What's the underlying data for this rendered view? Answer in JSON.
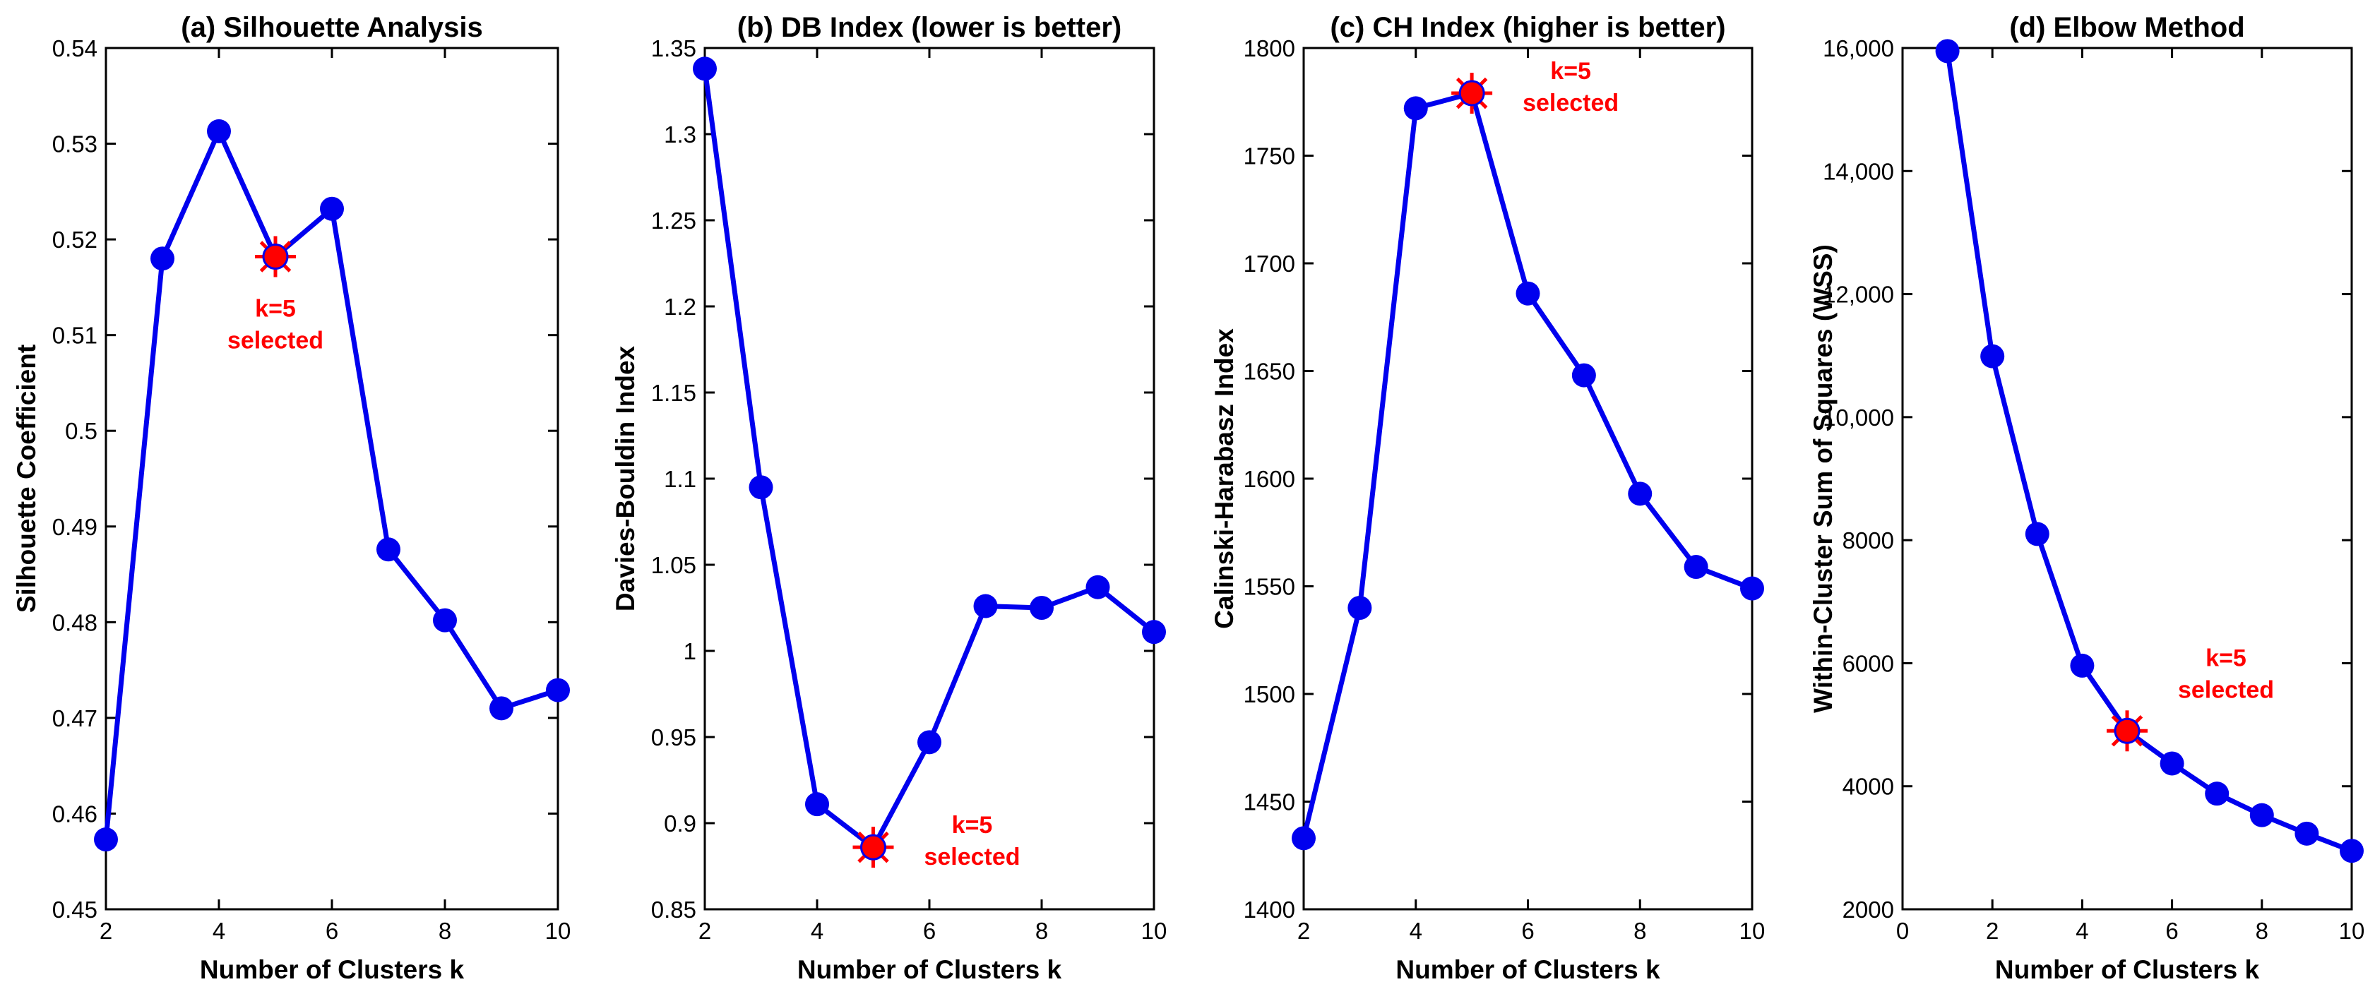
{
  "colors": {
    "series": "#0000ee",
    "highlight": "#ff0000",
    "axis": "#000000"
  },
  "chart_data": [
    {
      "type": "line",
      "title": "(a) Silhouette Analysis",
      "xlabel": "Number of Clusters k",
      "ylabel": "Silhouette Coefficient",
      "x": [
        2,
        3,
        4,
        5,
        6,
        7,
        8,
        9,
        10
      ],
      "values": [
        0.4573,
        0.518,
        0.5313,
        0.5182,
        0.5232,
        0.4876,
        0.4802,
        0.471,
        0.4729
      ],
      "xlim": [
        2,
        10
      ],
      "ylim": [
        0.45,
        0.54
      ],
      "xticks": [
        2,
        4,
        6,
        8,
        10
      ],
      "xtick_labels": [
        "2",
        "4",
        "6",
        "8",
        "10"
      ],
      "yticks": [
        0.45,
        0.46,
        0.47,
        0.48,
        0.49,
        0.5,
        0.51,
        0.52,
        0.53,
        0.54
      ],
      "ytick_labels": [
        "0.45",
        "0.46",
        "0.47",
        "0.48",
        "0.49",
        "0.5",
        "0.51",
        "0.52",
        "0.53",
        "0.54"
      ],
      "highlight": {
        "x": 5,
        "y": 0.5182,
        "label_line1": "k=5",
        "label_line2": "selected",
        "label_placement": "below"
      }
    },
    {
      "type": "line",
      "title": "(b) DB Index (lower is better)",
      "xlabel": "Number of Clusters k",
      "ylabel": "Davies-Bouldin Index",
      "x": [
        2,
        3,
        4,
        5,
        6,
        7,
        8,
        9,
        10
      ],
      "values": [
        1.338,
        1.095,
        0.911,
        0.886,
        0.947,
        1.026,
        1.025,
        1.037,
        1.011
      ],
      "xlim": [
        2,
        10
      ],
      "ylim": [
        0.85,
        1.35
      ],
      "xticks": [
        2,
        4,
        6,
        8,
        10
      ],
      "xtick_labels": [
        "2",
        "4",
        "6",
        "8",
        "10"
      ],
      "yticks": [
        0.85,
        0.9,
        0.95,
        1,
        1.05,
        1.1,
        1.15,
        1.2,
        1.25,
        1.3,
        1.35
      ],
      "ytick_labels": [
        "0.85",
        "0.9",
        "0.95",
        "1",
        "1.05",
        "1.1",
        "1.15",
        "1.2",
        "1.25",
        "1.3",
        "1.35"
      ],
      "highlight": {
        "x": 5,
        "y": 0.886,
        "label_line1": "k=5",
        "label_line2": "selected",
        "label_placement": "right"
      }
    },
    {
      "type": "line",
      "title": "(c) CH Index (higher is better)",
      "xlabel": "Number of Clusters k",
      "ylabel": "Calinski-Harabasz Index",
      "x": [
        2,
        3,
        4,
        5,
        6,
        7,
        8,
        9,
        10
      ],
      "values": [
        1433,
        1540,
        1772,
        1779,
        1686,
        1648,
        1593,
        1559,
        1549
      ],
      "xlim": [
        2,
        10
      ],
      "ylim": [
        1400,
        1800
      ],
      "xticks": [
        2,
        4,
        6,
        8,
        10
      ],
      "xtick_labels": [
        "2",
        "4",
        "6",
        "8",
        "10"
      ],
      "yticks": [
        1400,
        1450,
        1500,
        1550,
        1600,
        1650,
        1700,
        1750,
        1800
      ],
      "ytick_labels": [
        "1400",
        "1450",
        "1500",
        "1550",
        "1600",
        "1650",
        "1700",
        "1750",
        "1800"
      ],
      "highlight": {
        "x": 5,
        "y": 1779,
        "label_line1": "k=5",
        "label_line2": "selected",
        "label_placement": "right"
      }
    },
    {
      "type": "line",
      "title": "(d) Elbow Method",
      "xlabel": "Number of Clusters k",
      "ylabel": "Within-Cluster Sum of Squares (WSS)",
      "x": [
        1,
        2,
        3,
        4,
        5,
        6,
        7,
        8,
        9,
        10
      ],
      "values": [
        15950,
        10990,
        8100,
        5960,
        4900,
        4370,
        3880,
        3530,
        3230,
        2950
      ],
      "xlim": [
        0,
        10
      ],
      "ylim": [
        2000,
        16000
      ],
      "xticks": [
        0,
        2,
        4,
        6,
        8,
        10
      ],
      "xtick_labels": [
        "0",
        "2",
        "4",
        "6",
        "8",
        "10"
      ],
      "yticks": [
        2000,
        4000,
        6000,
        8000,
        10000,
        12000,
        14000,
        16000
      ],
      "ytick_labels": [
        "2000",
        "4000",
        "6000",
        "8000",
        "10,000",
        "12,000",
        "14,000",
        "16,000"
      ],
      "highlight": {
        "x": 5,
        "y": 4900,
        "label_line1": "k=5",
        "label_line2": "selected",
        "label_placement": "upper-right"
      }
    }
  ]
}
